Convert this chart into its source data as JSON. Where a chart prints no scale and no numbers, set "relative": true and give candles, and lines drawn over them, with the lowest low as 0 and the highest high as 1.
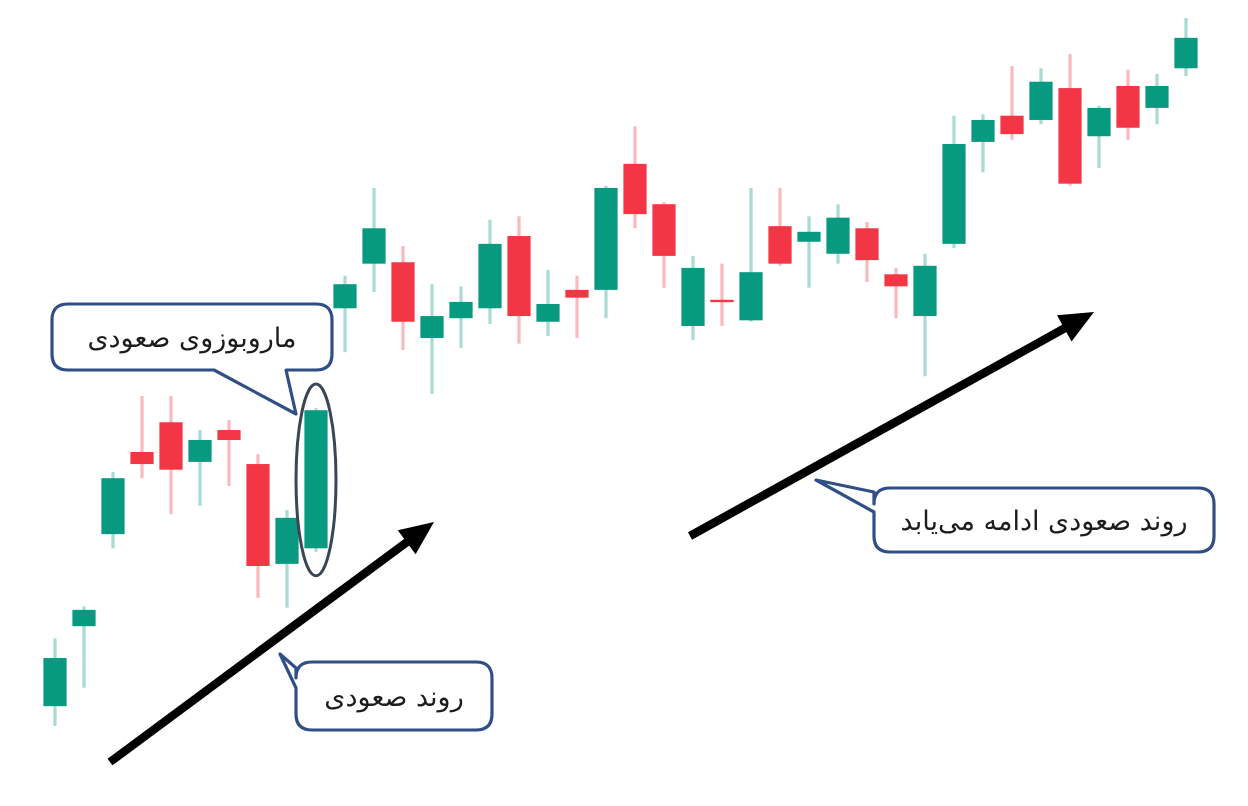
{
  "chart_data": {
    "type": "candlestick",
    "relative": true,
    "categories": [
      null,
      null,
      null,
      null,
      null,
      null,
      null,
      null,
      null,
      null,
      null,
      null,
      null,
      null,
      null,
      null,
      null,
      null,
      null,
      null,
      null,
      null,
      null,
      null,
      null,
      null,
      null,
      null,
      null,
      null,
      null,
      null,
      null,
      null,
      null,
      null,
      null,
      null,
      null,
      null
    ],
    "ohlc": [
      [
        0.028,
        0.124,
        0,
        0.096
      ],
      [
        0.141,
        0.169,
        0.054,
        0.164
      ],
      [
        0.271,
        0.359,
        0.251,
        0.35
      ],
      [
        0.387,
        0.466,
        0.35,
        0.37
      ],
      [
        0.429,
        0.466,
        0.299,
        0.362
      ],
      [
        0.373,
        0.418,
        0.311,
        0.404
      ],
      [
        0.418,
        0.432,
        0.339,
        0.404
      ],
      [
        0.37,
        0.384,
        0.181,
        0.226
      ],
      [
        0.229,
        0.305,
        0.167,
        0.294
      ],
      [
        0.251,
        0.449,
        0.246,
        0.446
      ],
      [
        0.59,
        0.636,
        0.528,
        0.624
      ],
      [
        0.653,
        0.76,
        0.613,
        0.703
      ],
      [
        0.655,
        0.678,
        0.531,
        0.571
      ],
      [
        0.548,
        0.624,
        0.469,
        0.579
      ],
      [
        0.576,
        0.621,
        0.534,
        0.599
      ],
      [
        0.59,
        0.715,
        0.568,
        0.681
      ],
      [
        0.692,
        0.72,
        0.54,
        0.579
      ],
      [
        0.571,
        0.644,
        0.551,
        0.596
      ],
      [
        0.616,
        0.636,
        0.548,
        0.605
      ],
      [
        0.616,
        0.763,
        0.576,
        0.76
      ],
      [
        0.794,
        0.847,
        0.703,
        0.723
      ],
      [
        0.737,
        0.74,
        0.619,
        0.664
      ],
      [
        0.565,
        0.664,
        0.545,
        0.647
      ],
      [
        0.602,
        0.653,
        0.565,
        0.599
      ],
      [
        0.573,
        0.76,
        0.571,
        0.641
      ],
      [
        0.706,
        0.76,
        0.65,
        0.653
      ],
      [
        0.684,
        0.72,
        0.619,
        0.698
      ],
      [
        0.667,
        0.737,
        0.653,
        0.718
      ],
      [
        0.703,
        0.712,
        0.627,
        0.658
      ],
      [
        0.638,
        0.647,
        0.576,
        0.621
      ],
      [
        0.579,
        0.667,
        0.494,
        0.65
      ],
      [
        0.681,
        0.862,
        0.675,
        0.822
      ],
      [
        0.825,
        0.864,
        0.782,
        0.856
      ],
      [
        0.862,
        0.932,
        0.828,
        0.836
      ],
      [
        0.856,
        0.929,
        0.85,
        0.91
      ],
      [
        0.901,
        0.949,
        0.763,
        0.766
      ],
      [
        0.833,
        0.876,
        0.788,
        0.873
      ],
      [
        0.904,
        0.927,
        0.828,
        0.845
      ],
      [
        0.873,
        0.921,
        0.85,
        0.904
      ],
      [
        0.929,
        1.0,
        0.918,
        0.972
      ]
    ],
    "colors": [
      "#089981",
      "#089981",
      "#089981",
      "#f23645",
      "#f23645",
      "#089981",
      "#f23645",
      "#f23645",
      "#089981",
      "#089981",
      "#089981",
      "#089981",
      "#f23645",
      "#089981",
      "#089981",
      "#089981",
      "#f23645",
      "#089981",
      "#f23645",
      "#089981",
      "#f23645",
      "#f23645",
      "#089981",
      "#f23645",
      "#089981",
      "#f23645",
      "#089981",
      "#089981",
      "#f23645",
      "#f23645",
      "#089981",
      "#089981",
      "#089981",
      "#f23645",
      "#089981",
      "#f23645",
      "#089981",
      "#f23645",
      "#089981",
      "#089981"
    ],
    "annotations": [
      "ماروبوزوی صعودی",
      "روند صعودی",
      "روند صعودی ادامه می‌یابد"
    ]
  }
}
